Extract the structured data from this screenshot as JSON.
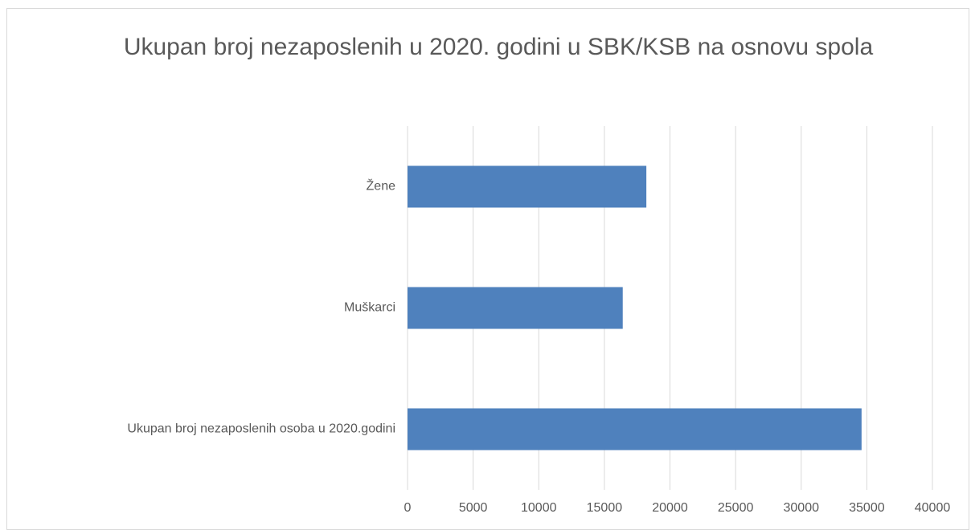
{
  "chart_data": {
    "type": "hbar",
    "title": "Ukupan broj nezaposlenih u 2020. godini u SBK/KSB na osnovu spola",
    "categories": [
      "Žene",
      "Muškarci",
      "Ukupan broj nezaposlenih osoba u 2020.godini"
    ],
    "values": [
      18200,
      16400,
      34600
    ],
    "color": "#4f81bd",
    "xlim": [
      0,
      40000
    ],
    "xticks": [
      0,
      5000,
      10000,
      15000,
      20000,
      25000,
      30000,
      35000,
      40000
    ],
    "grid": true
  }
}
